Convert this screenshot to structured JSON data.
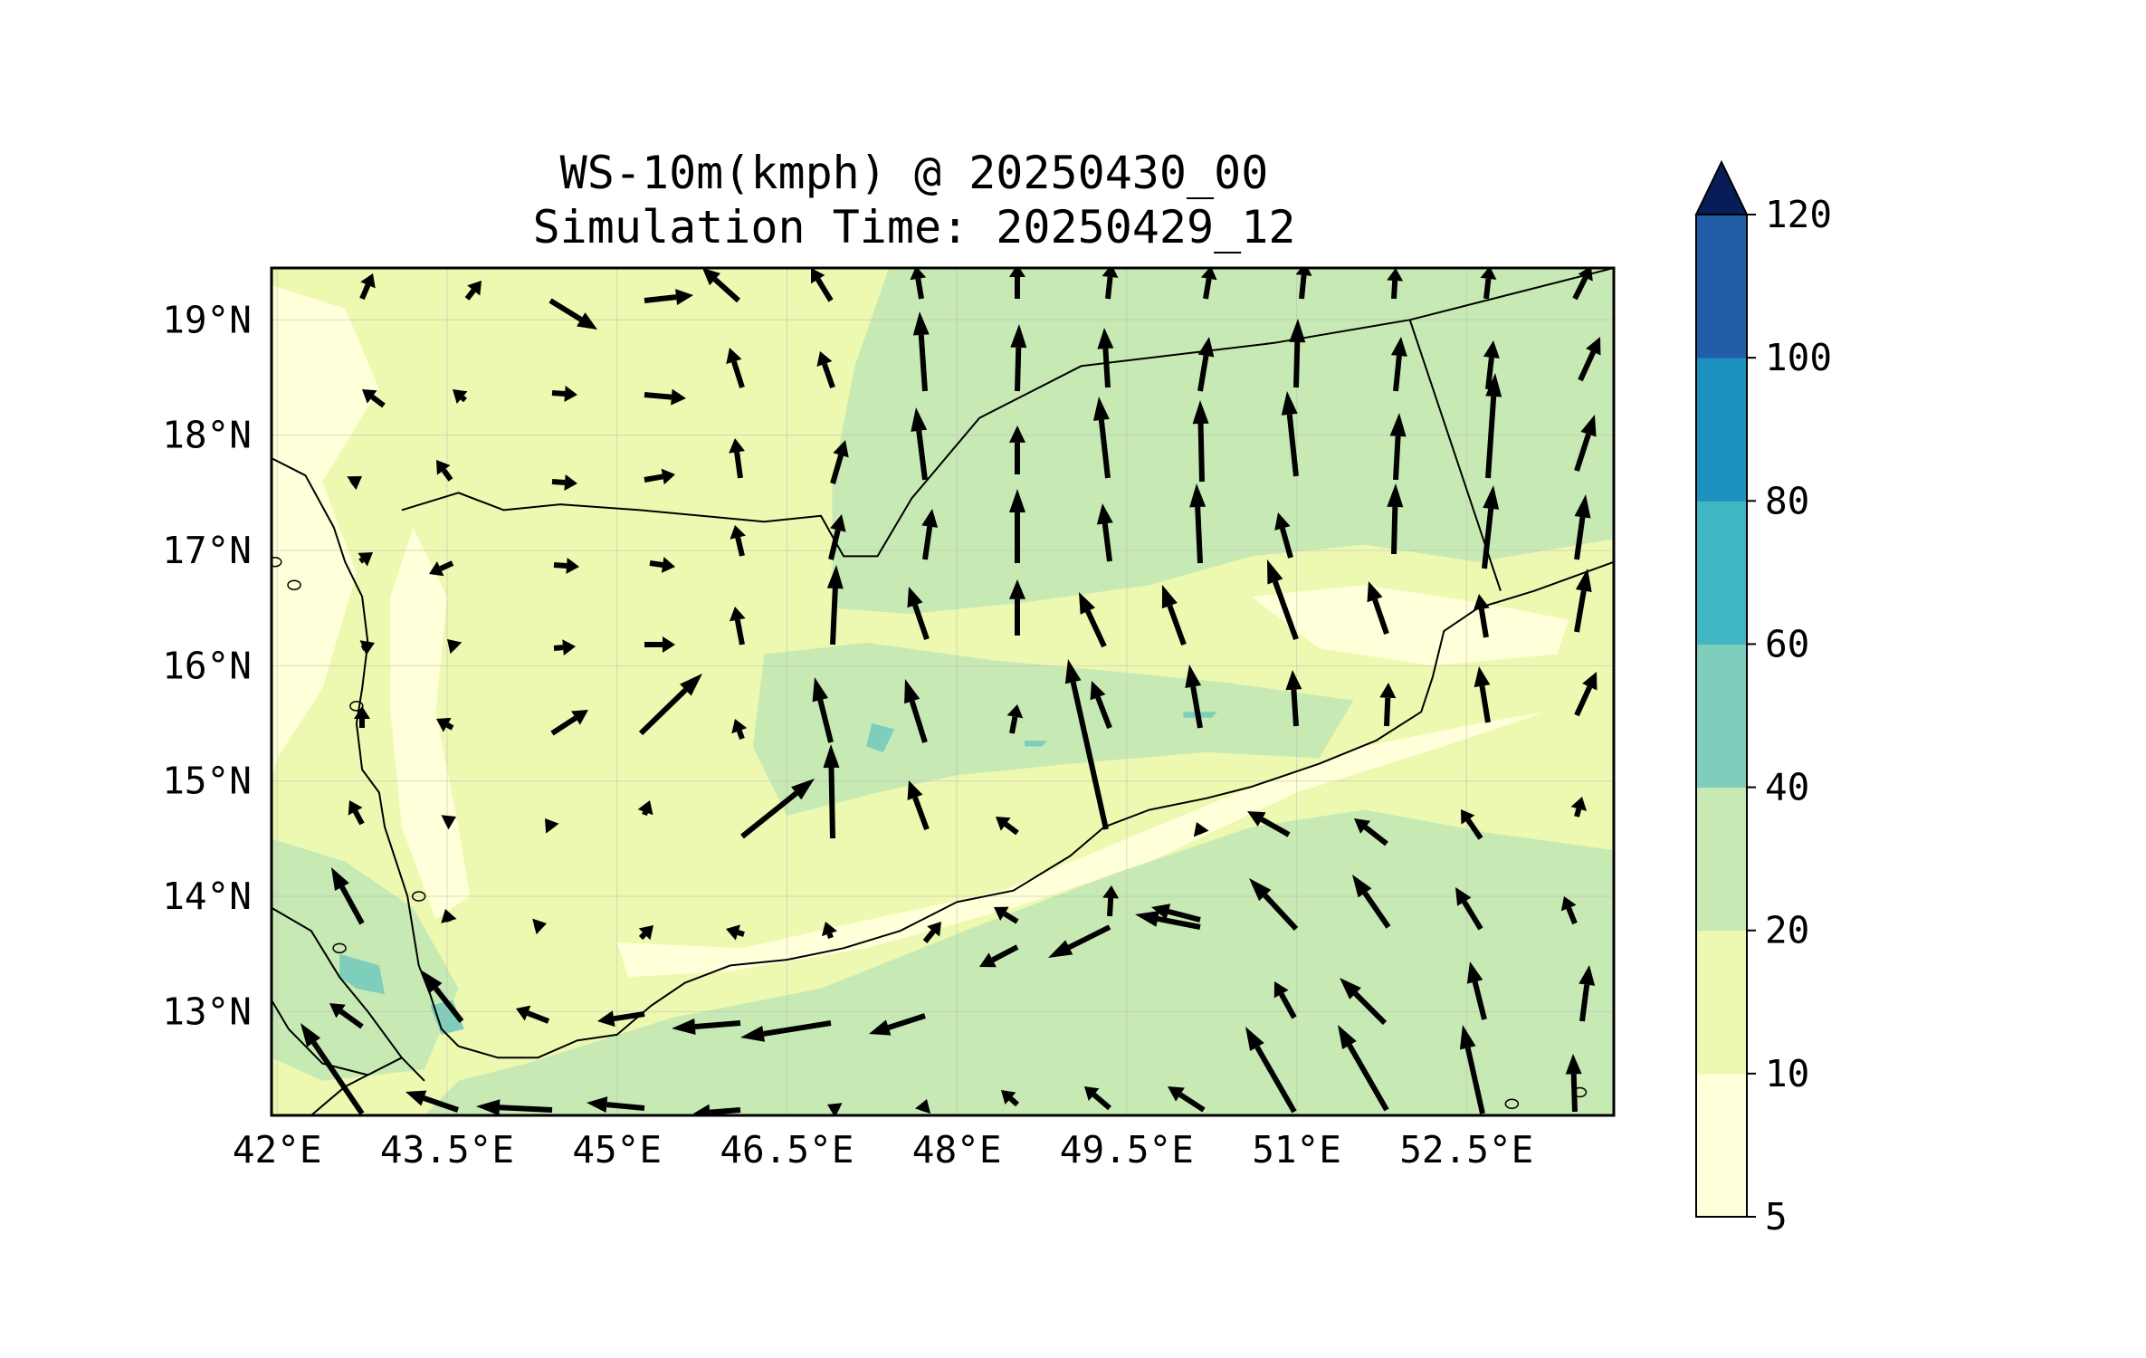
{
  "title": {
    "line1": "WS-10m(kmph) @ 20250430_00",
    "line2": "Simulation Time: 20250429_12"
  },
  "map": {
    "lon_range": [
      41.95,
      53.8
    ],
    "lat_range": [
      12.1,
      19.45
    ],
    "lon_ticks": [
      {
        "value": 42.0,
        "label": "42°E"
      },
      {
        "value": 43.5,
        "label": "43.5°E"
      },
      {
        "value": 45.0,
        "label": "45°E"
      },
      {
        "value": 46.5,
        "label": "46.5°E"
      },
      {
        "value": 48.0,
        "label": "48°E"
      },
      {
        "value": 49.5,
        "label": "49.5°E"
      },
      {
        "value": 51.0,
        "label": "51°E"
      },
      {
        "value": 52.5,
        "label": "52.5°E"
      }
    ],
    "lat_ticks": [
      {
        "value": 13,
        "label": "13°N"
      },
      {
        "value": 14,
        "label": "14°N"
      },
      {
        "value": 15,
        "label": "15°N"
      },
      {
        "value": 16,
        "label": "16°N"
      },
      {
        "value": 17,
        "label": "17°N"
      },
      {
        "value": 18,
        "label": "18°N"
      },
      {
        "value": 19,
        "label": "19°N"
      }
    ],
    "background_class_color": "#edf8b1",
    "calm_color": "#ffffd9",
    "land_boundary_color": "#000000"
  },
  "colorbar": {
    "levels": [
      5,
      10,
      20,
      40,
      60,
      80,
      100,
      120
    ],
    "labels": [
      "5",
      "10",
      "20",
      "40",
      "60",
      "80",
      "100",
      "120"
    ],
    "colors": [
      "#ffffd9",
      "#edf8b1",
      "#c7e9b4",
      "#7fcdbb",
      "#41b6c4",
      "#1d91c0",
      "#225ea8",
      "#253494"
    ],
    "extend_color": "#081d58",
    "extend": "max"
  }
}
